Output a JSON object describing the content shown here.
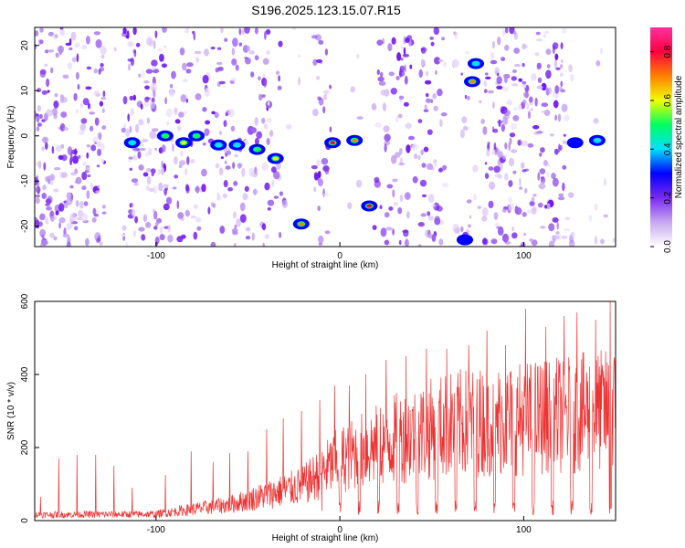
{
  "title": "S196.2025.123.15.07.R15",
  "chart_data": [
    {
      "type": "heatmap",
      "xlabel": "Height of straight line (km)",
      "ylabel": "Frequency (Hz)",
      "xlim": [
        -166,
        150
      ],
      "ylim": [
        -24.5,
        24
      ],
      "xticks": [
        -100,
        0,
        100
      ],
      "yticks": [
        20,
        10,
        0,
        -10,
        -20
      ],
      "colorbar": {
        "label": "Normalized spectral amplitude",
        "range": [
          0,
          0.9
        ],
        "ticks": [
          "0.0",
          "0.2",
          "0.4",
          "0.6",
          "0.8"
        ],
        "colors": [
          "#ffffff",
          "#c8a8f0",
          "#7a2af0",
          "#0000ff",
          "#00e0ff",
          "#00ff60",
          "#f0ff00",
          "#ff8000",
          "#ff0040",
          "#ff30a0"
        ]
      },
      "hotspots": [
        {
          "x": -113,
          "y": -1.5,
          "v": 0.4
        },
        {
          "x": -95,
          "y": 0,
          "v": 0.5
        },
        {
          "x": -85,
          "y": -1.5,
          "v": 0.55
        },
        {
          "x": -78,
          "y": 0,
          "v": 0.45
        },
        {
          "x": -66,
          "y": -2,
          "v": 0.4
        },
        {
          "x": -56,
          "y": -2,
          "v": 0.4
        },
        {
          "x": -45,
          "y": -3,
          "v": 0.5
        },
        {
          "x": -35,
          "y": -5,
          "v": 0.55
        },
        {
          "x": -21,
          "y": -19.5,
          "v": 0.7
        },
        {
          "x": -4,
          "y": -1.5,
          "v": 0.8
        },
        {
          "x": 8,
          "y": -1,
          "v": 0.75
        },
        {
          "x": 16,
          "y": -15.5,
          "v": 0.8
        },
        {
          "x": 72,
          "y": 12,
          "v": 0.75
        },
        {
          "x": 74,
          "y": 16,
          "v": 0.4
        },
        {
          "x": 128,
          "y": -1.5,
          "v": 0.35
        },
        {
          "x": 140,
          "y": -1,
          "v": 0.4
        },
        {
          "x": 68,
          "y": -23,
          "v": 0.3
        }
      ]
    },
    {
      "type": "line",
      "xlabel": "Height of straight line (km)",
      "ylabel": "SNR (10 * v/v)",
      "xlim": [
        -166,
        150
      ],
      "ylim": [
        0,
        600
      ],
      "xticks": [
        -100,
        0,
        100
      ],
      "yticks": [
        0,
        200,
        400,
        600
      ],
      "color": "#ee3333",
      "baseline_trend": [
        [
          -166,
          20
        ],
        [
          -100,
          22
        ],
        [
          -60,
          55
        ],
        [
          -20,
          120
        ],
        [
          0,
          210
        ],
        [
          30,
          280
        ],
        [
          60,
          330
        ],
        [
          100,
          350
        ],
        [
          150,
          380
        ]
      ],
      "spikes": [
        [
          -163,
          65
        ],
        [
          -153,
          170
        ],
        [
          -143,
          180
        ],
        [
          -133,
          180
        ],
        [
          -123,
          150
        ],
        [
          -113,
          90
        ],
        [
          -95,
          125
        ],
        [
          -81,
          190
        ],
        [
          -69,
          160
        ],
        [
          -60,
          185
        ],
        [
          -50,
          190
        ],
        [
          -40,
          250
        ],
        [
          -31,
          280
        ],
        [
          -21,
          300
        ],
        [
          -11,
          330
        ],
        [
          -3,
          370
        ],
        [
          5,
          370
        ],
        [
          14,
          400
        ],
        [
          25,
          440
        ],
        [
          36,
          450
        ],
        [
          47,
          470
        ],
        [
          58,
          470
        ],
        [
          70,
          480
        ],
        [
          80,
          520
        ],
        [
          90,
          480
        ],
        [
          101,
          580
        ],
        [
          112,
          530
        ],
        [
          122,
          560
        ],
        [
          129,
          570
        ],
        [
          139,
          550
        ],
        [
          147,
          600
        ],
        [
          150,
          440
        ]
      ]
    }
  ]
}
